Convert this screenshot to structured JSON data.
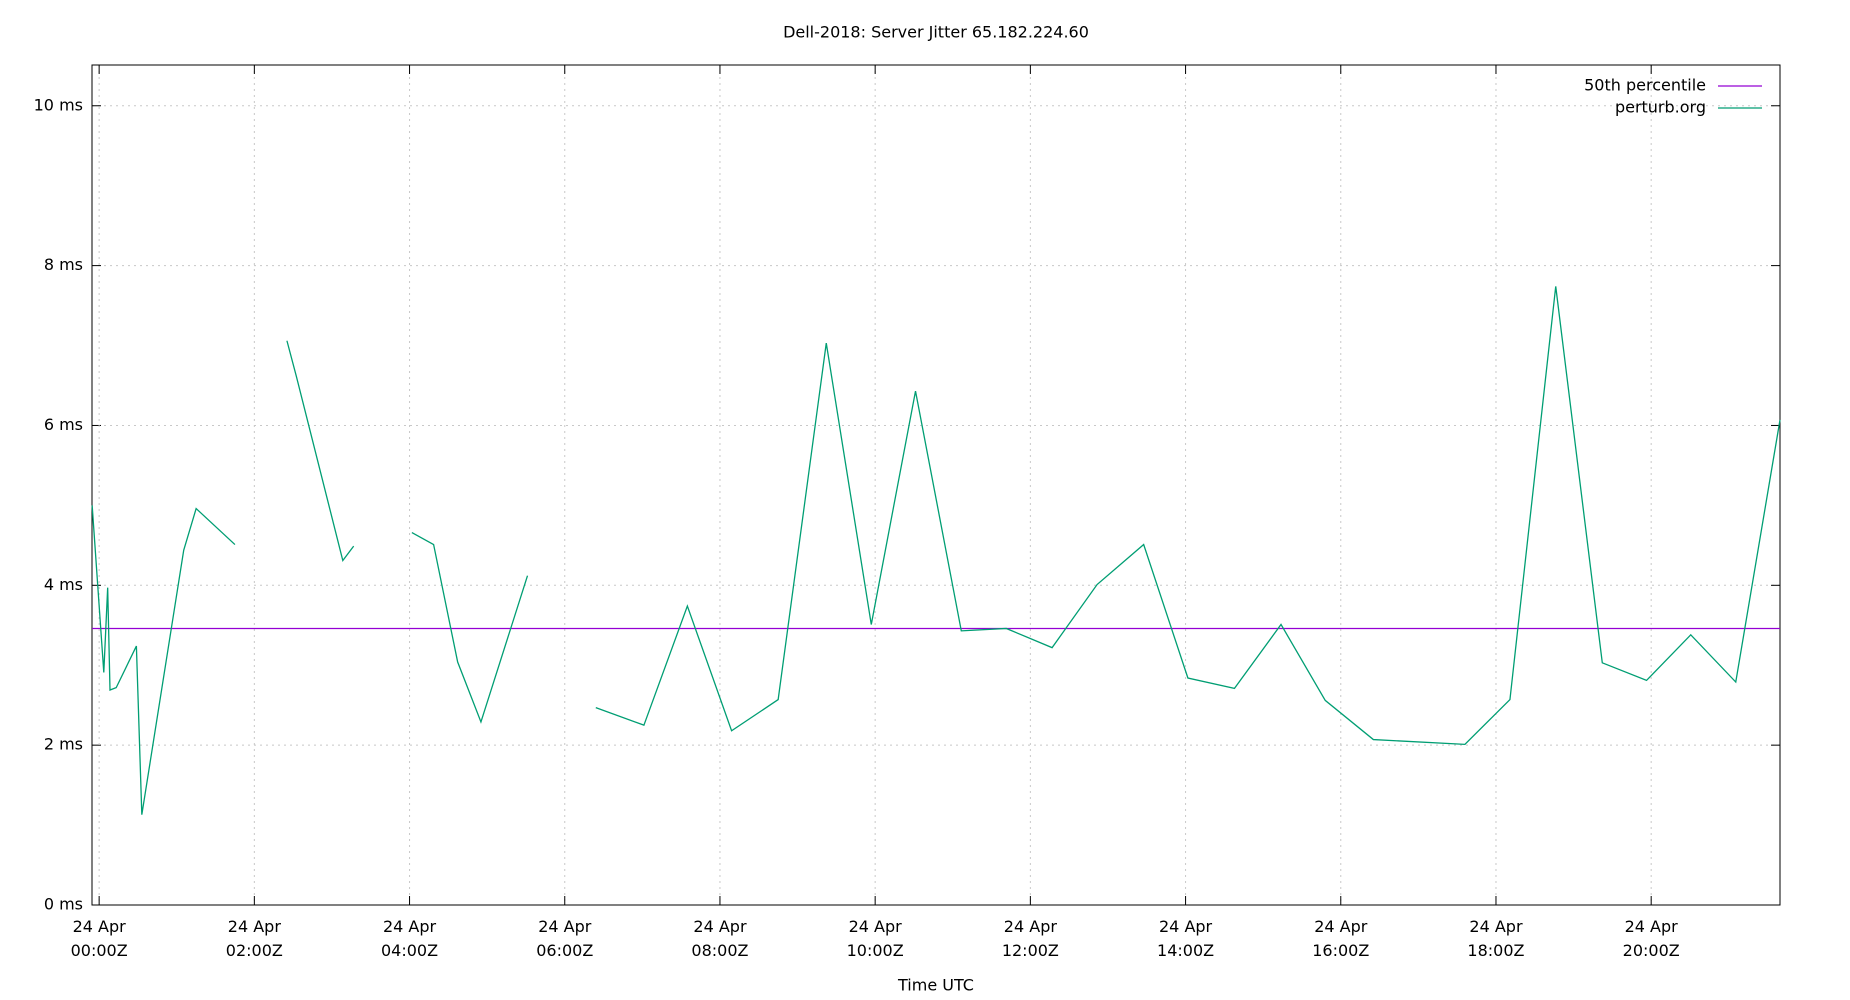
{
  "chart_data": {
    "type": "line",
    "title": "Dell-2018: Server Jitter 65.182.224.60",
    "x_label": "Time UTC",
    "xlim": [
      -0.092,
      21.66
    ],
    "ylim": [
      0,
      10.51
    ],
    "xticks": [
      {
        "value": 0,
        "label": "24 Apr\n00:00Z"
      },
      {
        "value": 2,
        "label": "24 Apr\n02:00Z"
      },
      {
        "value": 4,
        "label": "24 Apr\n04:00Z"
      },
      {
        "value": 6,
        "label": "24 Apr\n06:00Z"
      },
      {
        "value": 8,
        "label": "24 Apr\n08:00Z"
      },
      {
        "value": 10,
        "label": "24 Apr\n10:00Z"
      },
      {
        "value": 12,
        "label": "24 Apr\n12:00Z"
      },
      {
        "value": 14,
        "label": "24 Apr\n14:00Z"
      },
      {
        "value": 16,
        "label": "24 Apr\n16:00Z"
      },
      {
        "value": 18,
        "label": "24 Apr\n18:00Z"
      },
      {
        "value": 20,
        "label": "24 Apr\n20:00Z"
      }
    ],
    "yticks": [
      {
        "value": 0,
        "label": "0 ms"
      },
      {
        "value": 2,
        "label": "2 ms"
      },
      {
        "value": 4,
        "label": "4 ms"
      },
      {
        "value": 6,
        "label": "6 ms"
      },
      {
        "value": 8,
        "label": "8 ms"
      },
      {
        "value": 10,
        "label": "10 ms"
      }
    ],
    "grid": true,
    "legend": "upper-right",
    "series": [
      {
        "name": "50th percentile",
        "color": "#9400d3",
        "x": [
          -0.092,
          21.66
        ],
        "values": [
          3.46,
          3.46
        ]
      },
      {
        "name": "perturb.org",
        "color": "#009e73",
        "x": [
          -0.09,
          0.06,
          0.11,
          0.14,
          0.22,
          0.48,
          0.55,
          1.09,
          1.25,
          1.75,
          2.0,
          2.42,
          2.54,
          3.14,
          3.28,
          3.6,
          4.03,
          4.31,
          4.62,
          4.92,
          5.52,
          6.0,
          6.4,
          7.02,
          7.58,
          8.15,
          8.75,
          9.37,
          9.95,
          10.52,
          11.11,
          11.69,
          12.28,
          12.86,
          13.46,
          14.03,
          14.63,
          15.23,
          15.8,
          16.42,
          17.6,
          18.18,
          18.77,
          19.37,
          19.94,
          20.51,
          21.09,
          21.66
        ],
        "values": [
          5.0,
          2.91,
          3.97,
          2.69,
          2.72,
          3.24,
          1.13,
          4.44,
          4.96,
          4.51,
          null,
          7.06,
          6.62,
          4.31,
          4.49,
          null,
          4.66,
          4.51,
          3.04,
          2.29,
          4.12,
          null,
          2.47,
          2.25,
          3.74,
          2.18,
          2.57,
          7.03,
          3.51,
          6.43,
          3.43,
          3.46,
          3.22,
          4.01,
          4.51,
          2.84,
          2.71,
          3.51,
          2.56,
          2.07,
          2.01,
          2.57,
          7.74,
          3.03,
          2.81,
          3.38,
          2.79,
          6.07
        ]
      }
    ]
  }
}
